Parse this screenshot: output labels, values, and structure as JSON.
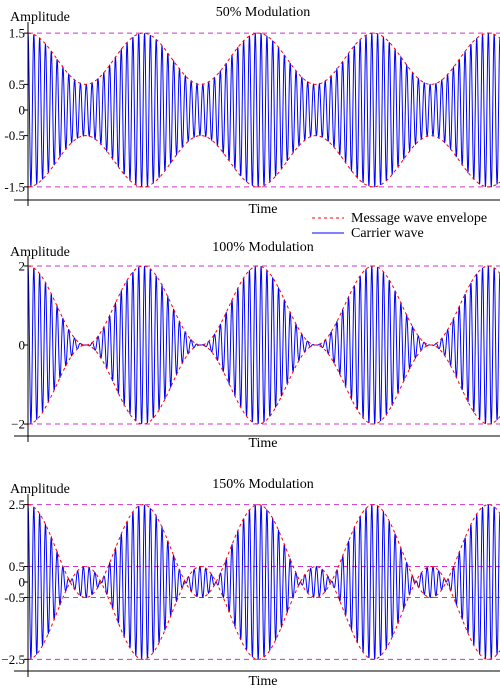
{
  "colors": {
    "carrier": "#0000ff",
    "envelope": "#ff0000",
    "reference": "#cc33cc",
    "axis": "#000000"
  },
  "legend": {
    "envelope_label": "Message wave envelope",
    "carrier_label": "Carrier wave"
  },
  "chart_data": [
    {
      "type": "line",
      "title": "50% Modulation",
      "ylabel": "Amplitude",
      "xlabel": "Time",
      "modulation_index": 0.5,
      "ylim": [
        -1.6,
        1.6
      ],
      "y_ticks": [
        1.5,
        0.5,
        0,
        -0.5,
        -1.5
      ],
      "y_tick_labels": [
        "1.5",
        "0.5",
        "0",
        "-0.5",
        "-1.5"
      ],
      "reference_lines": [
        1.5,
        -1.5
      ],
      "envelope_cycles": 4.1,
      "carrier_cycles": 81,
      "series": [
        {
          "name": "Message wave envelope",
          "style": "dashed",
          "formula": "±(1 + 0.5·cos(2π·t/T))"
        },
        {
          "name": "Carrier wave",
          "style": "solid",
          "formula": "(1 + 0.5·cos(2π·t/T))·cos(2π·f·t)"
        }
      ]
    },
    {
      "type": "line",
      "title": "100% Modulation",
      "ylabel": "Amplitude",
      "xlabel": "Time",
      "modulation_index": 1.0,
      "ylim": [
        -2.1,
        2.1
      ],
      "y_ticks": [
        2,
        0,
        -2
      ],
      "y_tick_labels": [
        "2",
        "0",
        "−2"
      ],
      "reference_lines": [
        2,
        -2
      ],
      "envelope_cycles": 4.1,
      "carrier_cycles": 81,
      "series": [
        {
          "name": "Message wave envelope",
          "style": "dashed",
          "formula": "±(1 + 1.0·cos(2π·t/T))"
        },
        {
          "name": "Carrier wave",
          "style": "solid",
          "formula": "(1 + 1.0·cos(2π·t/T))·cos(2π·f·t)"
        }
      ]
    },
    {
      "type": "line",
      "title": "150% Modulation",
      "ylabel": "Amplitude",
      "xlabel": "Time",
      "modulation_index": 1.5,
      "ylim": [
        -2.65,
        2.65
      ],
      "y_ticks": [
        2.5,
        0.5,
        0,
        -0.5,
        -2.5
      ],
      "y_tick_labels": [
        "2.5",
        "0.5",
        "0",
        "-0.5",
        "−2.5"
      ],
      "reference_lines": [
        2.5,
        0.5,
        -0.5,
        -2.5
      ],
      "envelope_cycles": 4.1,
      "carrier_cycles": 81,
      "series": [
        {
          "name": "Message wave envelope",
          "style": "dashed",
          "formula": "±|1 + 1.5·cos(2π·t/T)|"
        },
        {
          "name": "Carrier wave",
          "style": "solid",
          "formula": "(1 + 1.5·cos(2π·t/T))·cos(2π·f·t)"
        }
      ]
    }
  ]
}
